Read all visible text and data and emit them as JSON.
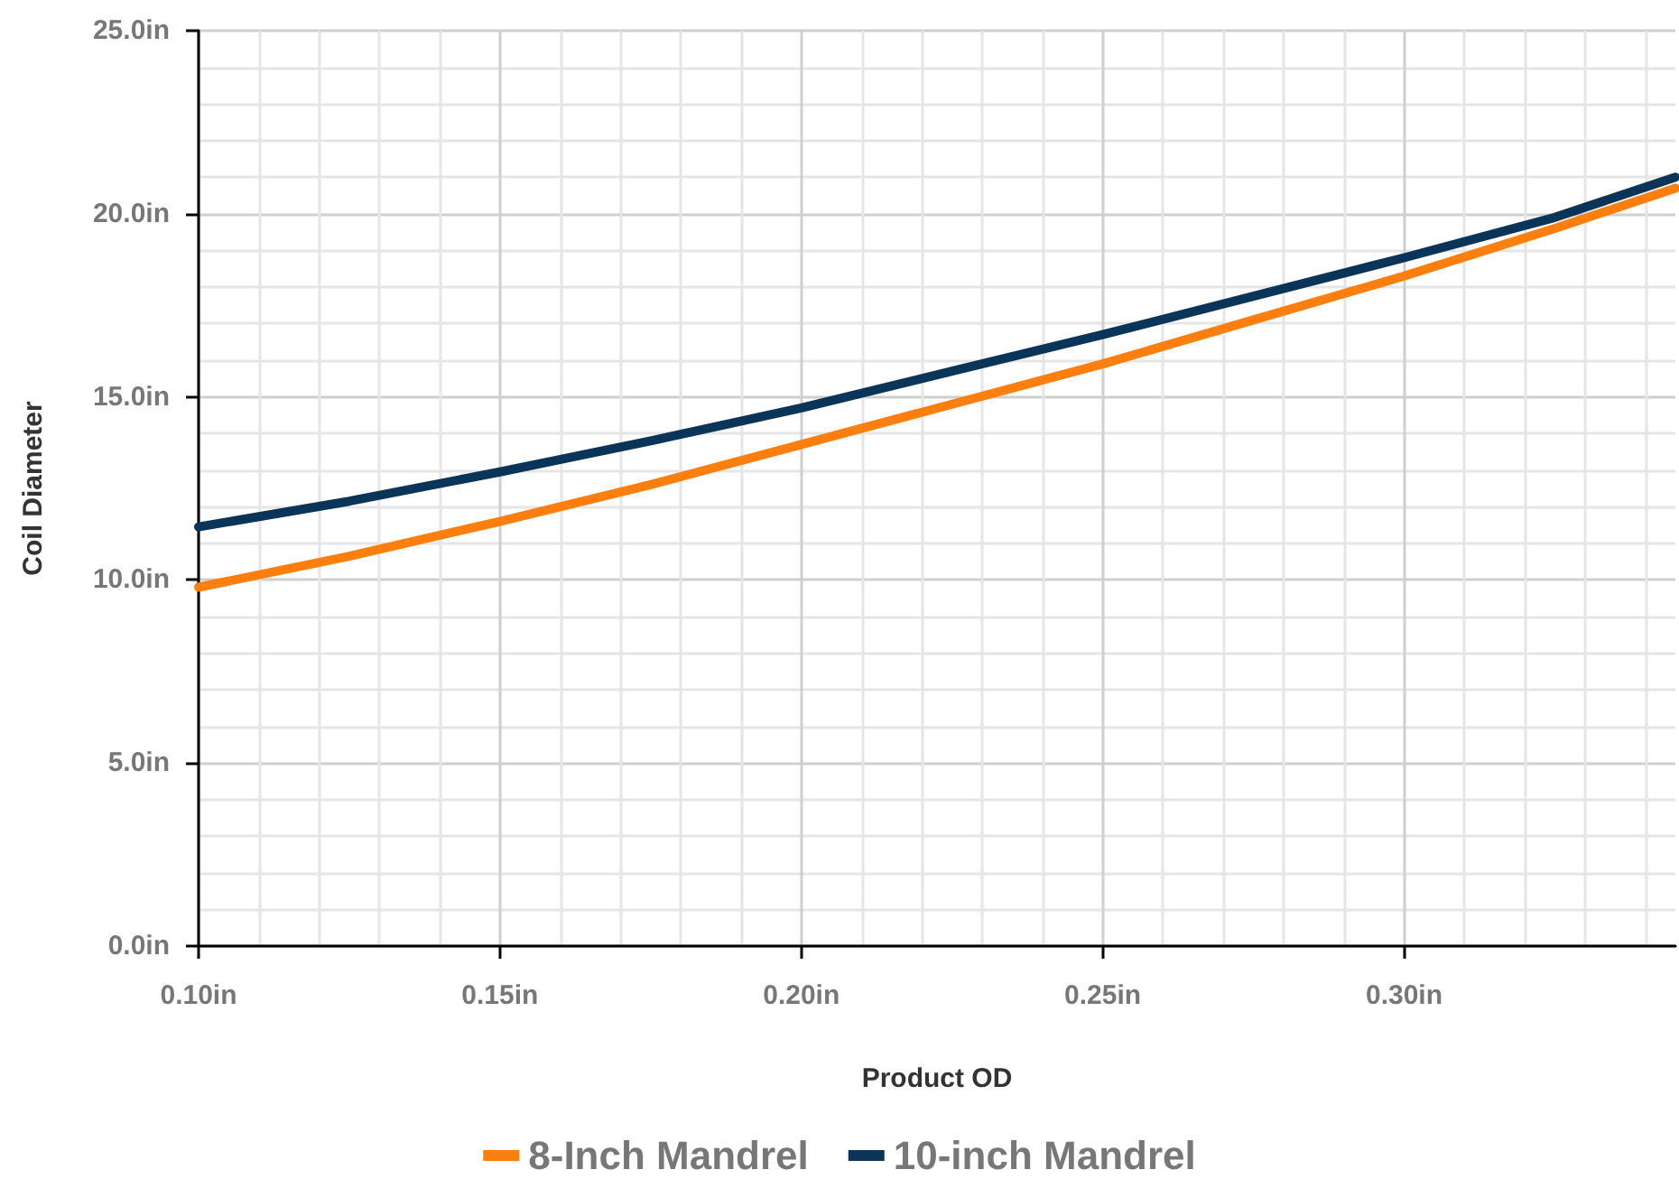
{
  "chart_data": {
    "type": "line",
    "xlabel": "Product OD",
    "ylabel": "Coil Diameter",
    "x": [
      0.1,
      0.125,
      0.15,
      0.175,
      0.2,
      0.225,
      0.25,
      0.275,
      0.3,
      0.325,
      0.345
    ],
    "series": [
      {
        "name": "8-Inch Mandrel",
        "color": "#ff7f0e",
        "values": [
          9.8,
          10.65,
          11.6,
          12.6,
          13.7,
          14.8,
          15.9,
          17.1,
          18.3,
          19.6,
          20.7
        ]
      },
      {
        "name": "10-inch Mandrel",
        "color": "#0b3558",
        "values": [
          11.45,
          12.15,
          12.95,
          13.8,
          14.7,
          15.7,
          16.7,
          17.75,
          18.8,
          19.9,
          21.0
        ]
      }
    ],
    "xlim": [
      0.1,
      0.345
    ],
    "xticks": [
      {
        "value": 0.1,
        "label": "0.10in"
      },
      {
        "value": 0.15,
        "label": "0.15in"
      },
      {
        "value": 0.2,
        "label": "0.20in"
      },
      {
        "value": 0.25,
        "label": "0.25in"
      },
      {
        "value": 0.3,
        "label": "0.30in"
      }
    ],
    "ylim": [
      0,
      25
    ],
    "yticks": [
      {
        "value": 0,
        "label": "0.0in"
      },
      {
        "value": 5,
        "label": "5.0in"
      },
      {
        "value": 10,
        "label": "10.0in"
      },
      {
        "value": 15,
        "label": "15.0in"
      },
      {
        "value": 20,
        "label": "20.0in"
      },
      {
        "value": 25,
        "label": "25.0in"
      }
    ],
    "grid": true,
    "legend": "bottom",
    "marker": "none",
    "line_style": "solid"
  }
}
